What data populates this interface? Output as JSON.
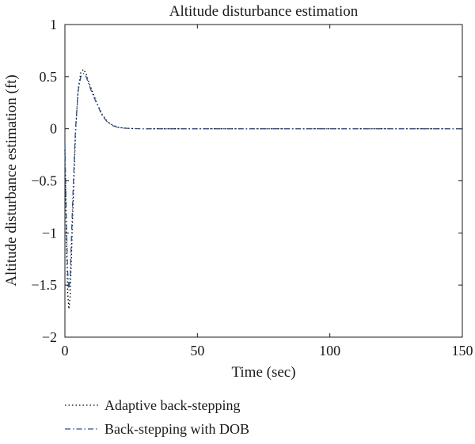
{
  "chart_data": {
    "type": "line",
    "title": "Altitude disturbance estimation",
    "xlabel": "Time (sec)",
    "ylabel": "Altitude disturbance estimation (ft)",
    "xlim": [
      0,
      150
    ],
    "ylim": [
      -2,
      1
    ],
    "xticks": [
      0,
      50,
      100,
      150
    ],
    "xtick_labels": [
      "0",
      "50",
      "100",
      "150"
    ],
    "yticks": [
      1,
      0.5,
      0,
      -0.5,
      -1,
      -1.5,
      -2
    ],
    "ytick_labels": [
      "1",
      "0.5",
      "0",
      "−0.5",
      "−1",
      "−1.5",
      "−2"
    ],
    "grid": false,
    "legend_position": "bottom-left-outside",
    "series": [
      {
        "name": "Adaptive back-stepping",
        "style": "dotted",
        "color": "#000000",
        "x": [
          0,
          0.5,
          1,
          1.5,
          2,
          3,
          4,
          5,
          6,
          7,
          8,
          9,
          10,
          12,
          14,
          16,
          18,
          20,
          22,
          25,
          30,
          40,
          60,
          100,
          150
        ],
        "y": [
          -0.2,
          -1.0,
          -1.55,
          -1.73,
          -1.6,
          -0.8,
          -0.05,
          0.38,
          0.54,
          0.57,
          0.53,
          0.45,
          0.38,
          0.25,
          0.14,
          0.07,
          0.035,
          0.015,
          0.007,
          0.002,
          0.0,
          0.0,
          0.0,
          0.0,
          0.0
        ]
      },
      {
        "name": "Back-stepping with DOB",
        "style": "dashdot",
        "color": "#2f4f8f",
        "x": [
          0,
          0.5,
          1,
          1.5,
          2,
          3,
          4,
          5,
          6,
          7,
          8,
          9,
          10,
          12,
          14,
          16,
          18,
          20,
          22,
          25,
          30,
          40,
          60,
          100,
          150
        ],
        "y": [
          -0.15,
          -0.8,
          -1.35,
          -1.55,
          -1.4,
          -0.65,
          0.0,
          0.36,
          0.5,
          0.53,
          0.5,
          0.43,
          0.36,
          0.24,
          0.13,
          0.065,
          0.03,
          0.013,
          0.006,
          0.002,
          0.0,
          0.0,
          0.0,
          0.0,
          0.0
        ]
      }
    ]
  }
}
